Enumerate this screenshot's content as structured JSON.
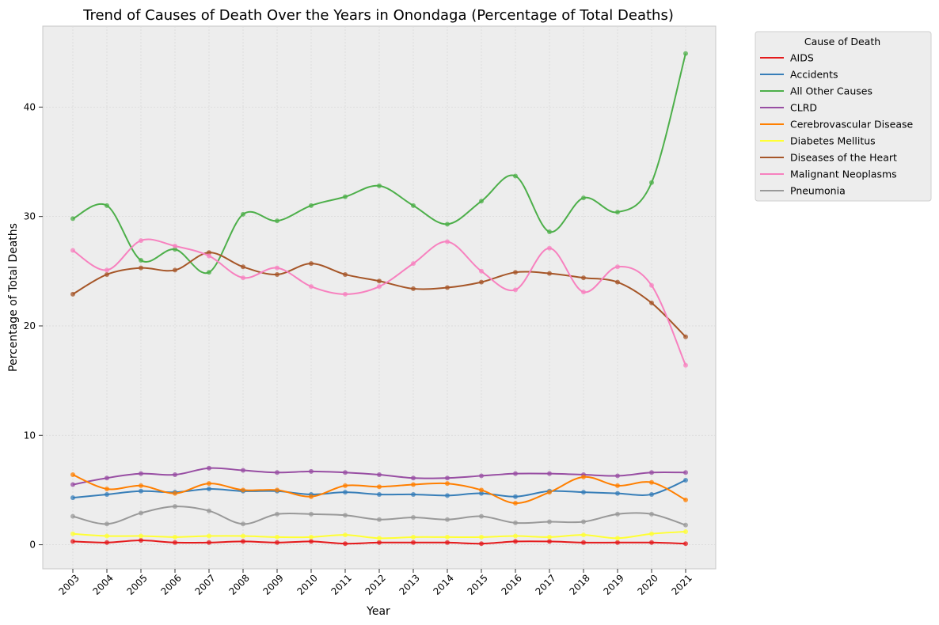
{
  "chart_data": {
    "type": "line",
    "title": "Trend of Causes of Death Over the Years in Onondaga (Percentage of Total Deaths)",
    "xlabel": "Year",
    "ylabel": "Percentage of Total Deaths",
    "ylim": [
      -2.2,
      47.4
    ],
    "yticks": [
      0,
      10,
      20,
      30,
      40
    ],
    "grid": true,
    "legend_title": "Cause of Death",
    "legend_position": "outside-right-top",
    "x": [
      "2003",
      "2004",
      "2005",
      "2006",
      "2007",
      "2008",
      "2009",
      "2010",
      "2011",
      "2012",
      "2013",
      "2014",
      "2015",
      "2016",
      "2017",
      "2018",
      "2019",
      "2020",
      "2021"
    ],
    "series": [
      {
        "name": "AIDS",
        "color": "#e41a1c",
        "values": [
          0.3,
          0.2,
          0.4,
          0.2,
          0.2,
          0.3,
          0.2,
          0.3,
          0.1,
          0.2,
          0.2,
          0.2,
          0.1,
          0.3,
          0.3,
          0.2,
          0.2,
          0.2,
          0.1
        ]
      },
      {
        "name": "Accidents",
        "color": "#377eb8",
        "values": [
          4.3,
          4.6,
          4.9,
          4.8,
          5.1,
          4.9,
          4.9,
          4.6,
          4.8,
          4.6,
          4.6,
          4.5,
          4.7,
          4.4,
          4.9,
          4.8,
          4.7,
          4.6,
          5.9
        ]
      },
      {
        "name": "All Other Causes",
        "color": "#4daf4a",
        "values": [
          29.8,
          31.0,
          26.0,
          27.0,
          24.9,
          30.2,
          29.6,
          31.0,
          31.8,
          32.8,
          31.0,
          29.3,
          31.4,
          33.7,
          28.6,
          31.7,
          30.4,
          33.1,
          44.9
        ]
      },
      {
        "name": "CLRD",
        "color": "#984ea3",
        "values": [
          5.5,
          6.1,
          6.5,
          6.4,
          7.0,
          6.8,
          6.6,
          6.7,
          6.6,
          6.4,
          6.1,
          6.1,
          6.3,
          6.5,
          6.5,
          6.4,
          6.3,
          6.6,
          6.6
        ]
      },
      {
        "name": "Cerebrovascular Disease",
        "color": "#ff7f00",
        "values": [
          6.4,
          5.1,
          5.4,
          4.7,
          5.6,
          5.0,
          5.0,
          4.4,
          5.4,
          5.3,
          5.5,
          5.6,
          5.0,
          3.8,
          4.8,
          6.2,
          5.4,
          5.7,
          4.1
        ]
      },
      {
        "name": "Diabetes Mellitus",
        "color": "#ffff33",
        "values": [
          1.0,
          0.8,
          0.8,
          0.7,
          0.8,
          0.8,
          0.7,
          0.7,
          0.9,
          0.6,
          0.7,
          0.7,
          0.7,
          0.8,
          0.7,
          0.9,
          0.6,
          1.0,
          1.2
        ]
      },
      {
        "name": "Diseases of the Heart",
        "color": "#a65628",
        "values": [
          22.9,
          24.7,
          25.3,
          25.1,
          26.7,
          25.4,
          24.7,
          25.7,
          24.7,
          24.1,
          23.4,
          23.5,
          24.0,
          24.9,
          24.8,
          24.4,
          24.0,
          22.1,
          19.0
        ]
      },
      {
        "name": "Malignant Neoplasms",
        "color": "#f781bf",
        "values": [
          26.9,
          25.1,
          27.8,
          27.3,
          26.4,
          24.4,
          25.3,
          23.6,
          22.9,
          23.6,
          25.7,
          27.7,
          25.0,
          23.3,
          27.1,
          23.1,
          25.4,
          23.7,
          16.4
        ]
      },
      {
        "name": "Pneumonia",
        "color": "#999999",
        "values": [
          2.6,
          1.9,
          2.9,
          3.5,
          3.1,
          1.9,
          2.8,
          2.8,
          2.7,
          2.3,
          2.5,
          2.3,
          2.6,
          2.0,
          2.1,
          2.1,
          2.8,
          2.8,
          1.8
        ]
      }
    ]
  }
}
